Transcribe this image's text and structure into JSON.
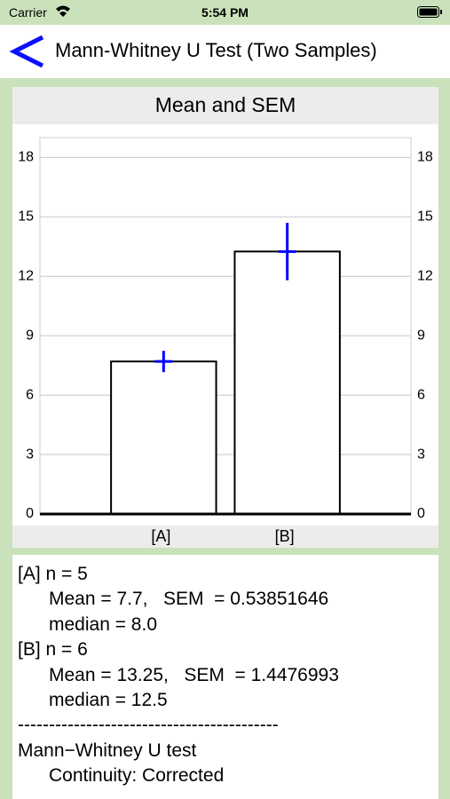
{
  "status_bar": {
    "carrier": "Carrier",
    "time": "5:54 PM"
  },
  "nav": {
    "title": "Mann-Whitney U Test (Two Samples)"
  },
  "chart_data": {
    "type": "bar",
    "title": "Mean and SEM",
    "categories": [
      "[A]",
      "[B]"
    ],
    "values": [
      7.7,
      13.25
    ],
    "errors": [
      0.53851646,
      1.4476993
    ],
    "color": "#ffffff",
    "edge_color": "#000000",
    "error_color": "#0000ff",
    "ylim": [
      0,
      19
    ],
    "yticks": [
      0,
      3,
      6,
      9,
      12,
      15,
      18
    ],
    "y2lim": [
      0,
      19
    ],
    "y2ticks": [
      0,
      3,
      6,
      9,
      12,
      15,
      18
    ],
    "grid": true
  },
  "results": {
    "samples": [
      {
        "header": "[A] n = 5",
        "lines": [
          "Mean = 7.7,   SEM  = 0.53851646",
          "median = 8.0"
        ]
      },
      {
        "header": "[B] n = 6",
        "lines": [
          "Mean = 13.25,   SEM  = 1.4476993",
          "median = 12.5"
        ]
      }
    ],
    "separator": "------------------------------------------",
    "test": {
      "header": "Mann−Whitney U test",
      "lines": [
        "Continuity: Corrected"
      ]
    }
  }
}
